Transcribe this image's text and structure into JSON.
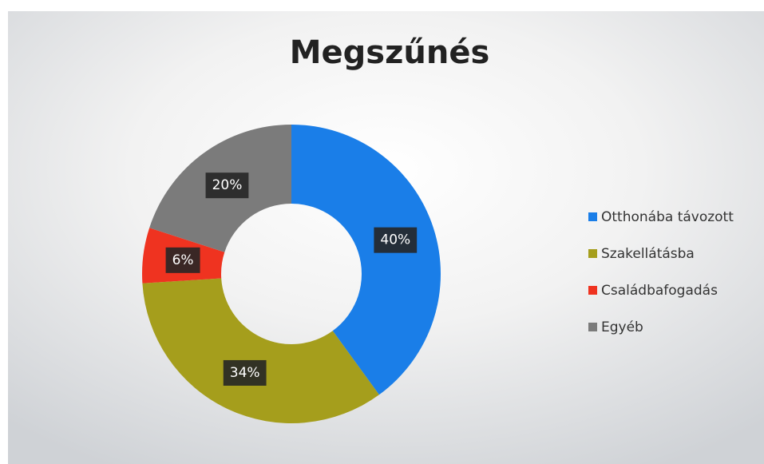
{
  "chart_data": {
    "type": "donut",
    "title": "Megszűnés",
    "categories": [
      "Otthonába távozott",
      "Szakellátásba",
      "Családbafogadás",
      "Egyéb"
    ],
    "values": [
      40,
      34,
      6,
      20
    ],
    "value_labels": [
      "40%",
      "34%",
      "6%",
      "20%"
    ],
    "colors": [
      "#1a7ee8",
      "#a59e1c",
      "#ef3320",
      "#7b7b7b"
    ],
    "legend": "right"
  }
}
